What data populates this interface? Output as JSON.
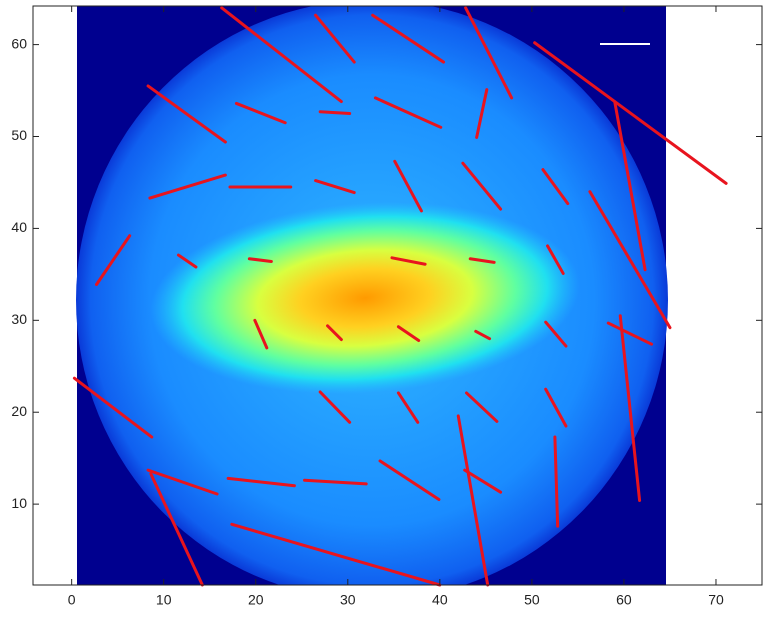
{
  "chart_data": {
    "type": "vector-map",
    "color": "#e8141e",
    "xlim": [
      -4.2,
      75
    ],
    "ylim": [
      1.2,
      64.2
    ],
    "xticks": [
      0,
      10,
      20,
      30,
      40,
      50,
      60,
      70
    ],
    "yticks": [
      10,
      20,
      30,
      40,
      50,
      60
    ],
    "segments": [
      {
        "x": [
          16.3,
          29.3
        ],
        "y": [
          64.0,
          53.8
        ]
      },
      {
        "x": [
          26.5,
          30.7
        ],
        "y": [
          63.2,
          58.1
        ]
      },
      {
        "x": [
          32.7,
          40.4
        ],
        "y": [
          63.2,
          58.1
        ]
      },
      {
        "x": [
          42.8,
          47.8
        ],
        "y": [
          64.0,
          54.2
        ]
      },
      {
        "x": [
          50.3,
          71.1
        ],
        "y": [
          60.2,
          44.9
        ]
      },
      {
        "x": [
          8.3,
          16.7
        ],
        "y": [
          55.5,
          49.4
        ]
      },
      {
        "x": [
          17.9,
          23.2
        ],
        "y": [
          53.6,
          51.5
        ]
      },
      {
        "x": [
          27.0,
          30.2
        ],
        "y": [
          52.7,
          52.5
        ]
      },
      {
        "x": [
          33.0,
          40.1
        ],
        "y": [
          54.2,
          51.0
        ]
      },
      {
        "x": [
          45.1,
          44.0
        ],
        "y": [
          55.1,
          49.9
        ]
      },
      {
        "x": [
          59.0,
          62.3
        ],
        "y": [
          53.8,
          35.5
        ]
      },
      {
        "x": [
          8.5,
          16.7
        ],
        "y": [
          43.3,
          45.8
        ]
      },
      {
        "x": [
          17.2,
          23.8
        ],
        "y": [
          44.5,
          44.5
        ]
      },
      {
        "x": [
          26.5,
          30.7
        ],
        "y": [
          45.2,
          43.9
        ]
      },
      {
        "x": [
          35.1,
          38.0
        ],
        "y": [
          47.3,
          41.9
        ]
      },
      {
        "x": [
          42.5,
          46.6
        ],
        "y": [
          47.1,
          42.1
        ]
      },
      {
        "x": [
          51.2,
          53.9
        ],
        "y": [
          46.4,
          42.7
        ]
      },
      {
        "x": [
          56.3,
          65.0
        ],
        "y": [
          44.0,
          29.2
        ]
      },
      {
        "x": [
          2.7,
          6.3
        ],
        "y": [
          33.9,
          39.2
        ]
      },
      {
        "x": [
          11.6,
          13.5
        ],
        "y": [
          37.1,
          35.8
        ]
      },
      {
        "x": [
          19.3,
          21.7
        ],
        "y": [
          36.7,
          36.4
        ]
      },
      {
        "x": [
          34.8,
          38.4
        ],
        "y": [
          36.8,
          36.1
        ]
      },
      {
        "x": [
          43.3,
          45.9
        ],
        "y": [
          36.7,
          36.3
        ]
      },
      {
        "x": [
          51.7,
          53.4
        ],
        "y": [
          38.1,
          35.1
        ]
      },
      {
        "x": [
          19.9,
          21.2
        ],
        "y": [
          30.0,
          27.0
        ]
      },
      {
        "x": [
          27.8,
          29.3
        ],
        "y": [
          29.4,
          27.9
        ]
      },
      {
        "x": [
          35.5,
          37.7
        ],
        "y": [
          29.3,
          27.8
        ]
      },
      {
        "x": [
          43.9,
          45.4
        ],
        "y": [
          28.8,
          28.0
        ]
      },
      {
        "x": [
          51.5,
          53.7
        ],
        "y": [
          29.8,
          27.2
        ]
      },
      {
        "x": [
          58.3,
          63.0
        ],
        "y": [
          29.7,
          27.4
        ]
      },
      {
        "x": [
          59.6,
          61.7
        ],
        "y": [
          30.5,
          10.4
        ]
      },
      {
        "x": [
          0.3,
          8.7
        ],
        "y": [
          23.7,
          17.3
        ]
      },
      {
        "x": [
          27.0,
          30.2
        ],
        "y": [
          22.2,
          18.9
        ]
      },
      {
        "x": [
          35.5,
          37.6
        ],
        "y": [
          22.1,
          18.9
        ]
      },
      {
        "x": [
          42.9,
          46.2
        ],
        "y": [
          22.1,
          19.0
        ]
      },
      {
        "x": [
          51.5,
          53.7
        ],
        "y": [
          22.5,
          18.5
        ]
      },
      {
        "x": [
          8.3,
          15.8
        ],
        "y": [
          13.7,
          11.1
        ]
      },
      {
        "x": [
          17.0,
          24.2
        ],
        "y": [
          12.8,
          12.0
        ]
      },
      {
        "x": [
          25.3,
          32.0
        ],
        "y": [
          12.6,
          12.2
        ]
      },
      {
        "x": [
          33.5,
          39.9
        ],
        "y": [
          14.7,
          10.5
        ]
      },
      {
        "x": [
          42.7,
          46.6
        ],
        "y": [
          13.7,
          11.3
        ]
      },
      {
        "x": [
          52.5,
          52.8
        ],
        "y": [
          17.3,
          7.6
        ]
      },
      {
        "x": [
          8.6,
          14.2
        ],
        "y": [
          13.3,
          1.2
        ]
      },
      {
        "x": [
          17.4,
          40.0
        ],
        "y": [
          7.8,
          1.2
        ]
      },
      {
        "x": [
          42.0,
          45.2
        ],
        "y": [
          19.6,
          1.2
        ]
      }
    ]
  }
}
